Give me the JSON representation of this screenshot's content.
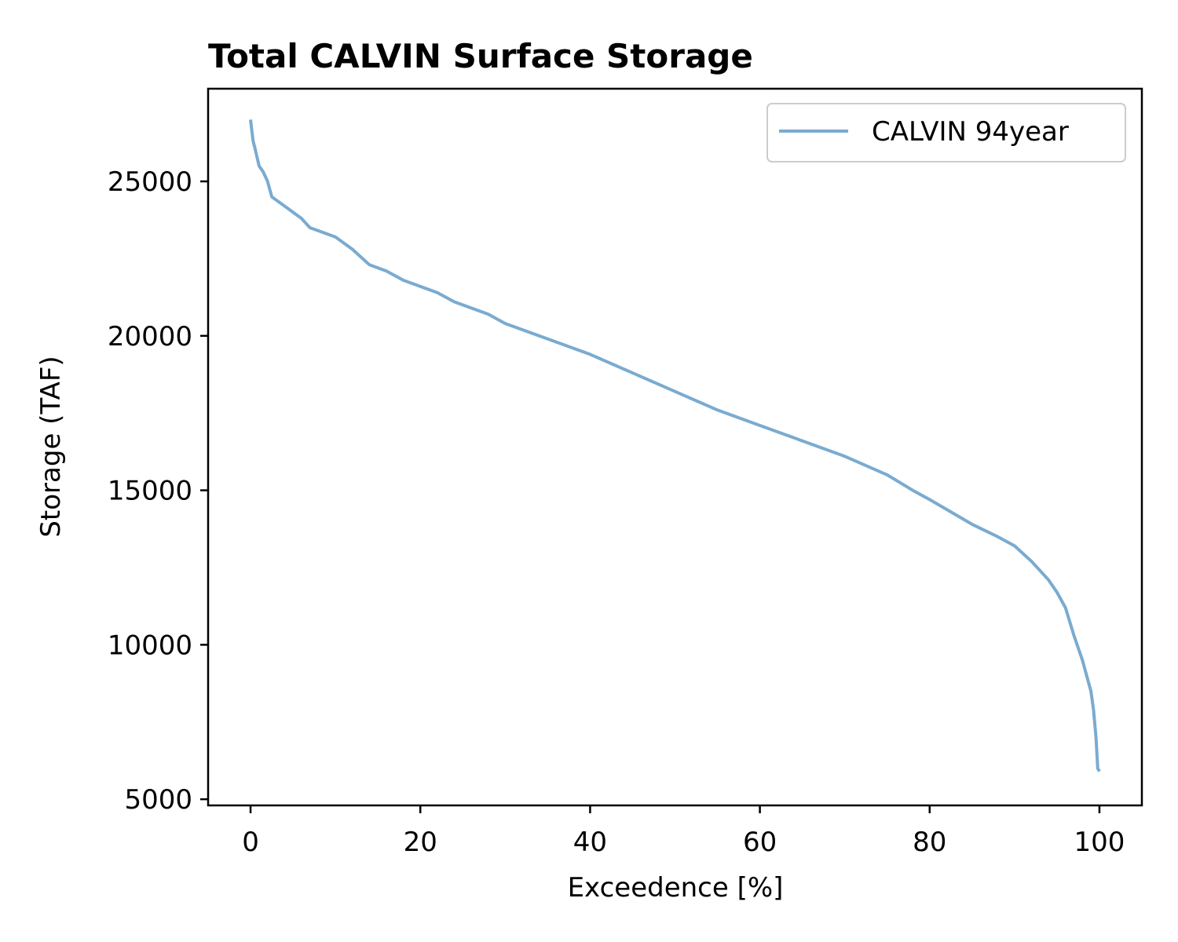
{
  "chart_data": {
    "type": "line",
    "title": "Total CALVIN Surface Storage",
    "xlabel": "Exceedence [%]",
    "ylabel": "Storage (TAF)",
    "xlim": [
      -5,
      105
    ],
    "ylim": [
      4800,
      28000
    ],
    "xticks": [
      0,
      20,
      40,
      60,
      80,
      100
    ],
    "yticks": [
      5000,
      10000,
      15000,
      20000,
      25000
    ],
    "grid": false,
    "legend": "top-right",
    "series": [
      {
        "name": "CALVIN 94year",
        "color": "#7aabd0",
        "x": [
          0,
          0.3,
          0.5,
          1,
          1.5,
          2,
          2.5,
          3,
          4,
          5,
          6,
          7,
          8,
          10,
          12,
          14,
          16,
          18,
          20,
          22,
          24,
          26,
          28,
          30,
          35,
          40,
          45,
          50,
          55,
          60,
          65,
          70,
          75,
          78,
          80,
          85,
          88,
          90,
          92,
          94,
          95,
          96,
          97,
          98,
          98.5,
          99,
          99.3,
          99.6,
          99.8,
          100
        ],
        "values": [
          27000,
          26300,
          26100,
          25500,
          25300,
          25000,
          24500,
          24400,
          24200,
          24000,
          23800,
          23500,
          23400,
          23200,
          22800,
          22300,
          22100,
          21800,
          21600,
          21400,
          21100,
          20900,
          20700,
          20400,
          19900,
          19400,
          18800,
          18200,
          17600,
          17100,
          16600,
          16100,
          15500,
          15000,
          14700,
          13900,
          13500,
          13200,
          12700,
          12100,
          11700,
          11200,
          10300,
          9500,
          9000,
          8500,
          7900,
          7000,
          6000,
          5900
        ]
      }
    ]
  }
}
